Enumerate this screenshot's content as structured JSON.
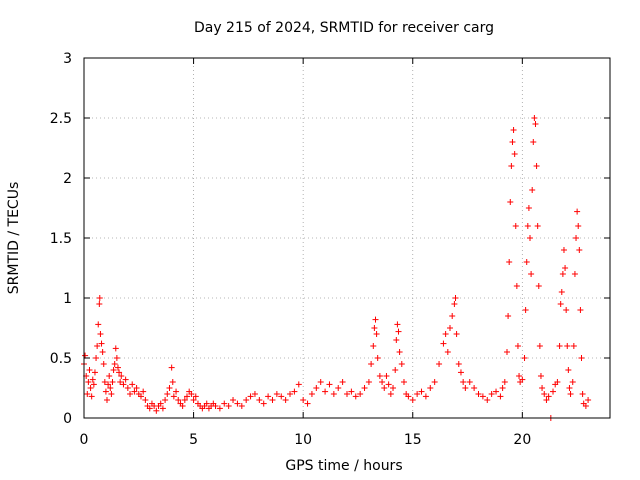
{
  "chart_data": {
    "type": "scatter",
    "title": "Day 215 of 2024, SRMTID for receiver carg",
    "xlabel": "GPS time / hours",
    "ylabel": "SRMTID / TECUs",
    "xlim": [
      0,
      24
    ],
    "ylim": [
      0,
      3
    ],
    "xticks": [
      0,
      5,
      10,
      15,
      20
    ],
    "yticks": [
      0,
      0.5,
      1,
      1.5,
      2,
      2.5,
      3
    ],
    "grid": true,
    "marker": "+",
    "color": "#ff0000",
    "series": [
      {
        "name": "SRMTID",
        "points": [
          [
            0.0,
            0.45
          ],
          [
            0.05,
            0.52
          ],
          [
            0.1,
            0.35
          ],
          [
            0.15,
            0.2
          ],
          [
            0.2,
            0.3
          ],
          [
            0.25,
            0.4
          ],
          [
            0.3,
            0.25
          ],
          [
            0.35,
            0.18
          ],
          [
            0.4,
            0.32
          ],
          [
            0.45,
            0.28
          ],
          [
            0.5,
            0.38
          ],
          [
            0.55,
            0.5
          ],
          [
            0.6,
            0.6
          ],
          [
            0.65,
            0.78
          ],
          [
            0.7,
            0.95
          ],
          [
            0.72,
            1.0
          ],
          [
            0.75,
            0.7
          ],
          [
            0.8,
            0.62
          ],
          [
            0.85,
            0.55
          ],
          [
            0.9,
            0.45
          ],
          [
            0.95,
            0.3
          ],
          [
            1.0,
            0.22
          ],
          [
            1.05,
            0.15
          ],
          [
            1.1,
            0.28
          ],
          [
            1.15,
            0.35
          ],
          [
            1.2,
            0.25
          ],
          [
            1.25,
            0.2
          ],
          [
            1.3,
            0.3
          ],
          [
            1.35,
            0.4
          ],
          [
            1.4,
            0.45
          ],
          [
            1.45,
            0.58
          ],
          [
            1.5,
            0.5
          ],
          [
            1.55,
            0.42
          ],
          [
            1.6,
            0.38
          ],
          [
            1.65,
            0.3
          ],
          [
            1.7,
            0.35
          ],
          [
            1.8,
            0.28
          ],
          [
            1.9,
            0.32
          ],
          [
            2.0,
            0.25
          ],
          [
            2.1,
            0.2
          ],
          [
            2.2,
            0.28
          ],
          [
            2.3,
            0.22
          ],
          [
            2.4,
            0.25
          ],
          [
            2.5,
            0.2
          ],
          [
            2.6,
            0.18
          ],
          [
            2.7,
            0.22
          ],
          [
            2.8,
            0.15
          ],
          [
            2.9,
            0.1
          ],
          [
            3.0,
            0.08
          ],
          [
            3.1,
            0.12
          ],
          [
            3.2,
            0.1
          ],
          [
            3.3,
            0.06
          ],
          [
            3.4,
            0.1
          ],
          [
            3.5,
            0.12
          ],
          [
            3.6,
            0.08
          ],
          [
            3.7,
            0.15
          ],
          [
            3.8,
            0.2
          ],
          [
            3.9,
            0.25
          ],
          [
            4.0,
            0.42
          ],
          [
            4.05,
            0.3
          ],
          [
            4.1,
            0.18
          ],
          [
            4.2,
            0.22
          ],
          [
            4.3,
            0.15
          ],
          [
            4.4,
            0.12
          ],
          [
            4.5,
            0.1
          ],
          [
            4.6,
            0.15
          ],
          [
            4.7,
            0.18
          ],
          [
            4.8,
            0.22
          ],
          [
            4.9,
            0.2
          ],
          [
            5.0,
            0.15
          ],
          [
            5.1,
            0.18
          ],
          [
            5.2,
            0.12
          ],
          [
            5.3,
            0.1
          ],
          [
            5.4,
            0.08
          ],
          [
            5.5,
            0.1
          ],
          [
            5.6,
            0.12
          ],
          [
            5.7,
            0.08
          ],
          [
            5.8,
            0.1
          ],
          [
            5.9,
            0.12
          ],
          [
            6.0,
            0.1
          ],
          [
            6.2,
            0.08
          ],
          [
            6.4,
            0.12
          ],
          [
            6.6,
            0.1
          ],
          [
            6.8,
            0.15
          ],
          [
            7.0,
            0.12
          ],
          [
            7.2,
            0.1
          ],
          [
            7.4,
            0.15
          ],
          [
            7.6,
            0.18
          ],
          [
            7.8,
            0.2
          ],
          [
            8.0,
            0.15
          ],
          [
            8.2,
            0.12
          ],
          [
            8.4,
            0.18
          ],
          [
            8.6,
            0.15
          ],
          [
            8.8,
            0.2
          ],
          [
            9.0,
            0.18
          ],
          [
            9.2,
            0.15
          ],
          [
            9.4,
            0.2
          ],
          [
            9.6,
            0.22
          ],
          [
            9.8,
            0.28
          ],
          [
            10.0,
            0.15
          ],
          [
            10.2,
            0.12
          ],
          [
            10.4,
            0.2
          ],
          [
            10.6,
            0.25
          ],
          [
            10.8,
            0.3
          ],
          [
            11.0,
            0.22
          ],
          [
            11.2,
            0.28
          ],
          [
            11.4,
            0.2
          ],
          [
            11.6,
            0.25
          ],
          [
            11.8,
            0.3
          ],
          [
            12.0,
            0.2
          ],
          [
            12.2,
            0.22
          ],
          [
            12.4,
            0.18
          ],
          [
            12.6,
            0.2
          ],
          [
            12.8,
            0.25
          ],
          [
            13.0,
            0.3
          ],
          [
            13.1,
            0.45
          ],
          [
            13.2,
            0.6
          ],
          [
            13.25,
            0.75
          ],
          [
            13.3,
            0.82
          ],
          [
            13.35,
            0.7
          ],
          [
            13.4,
            0.5
          ],
          [
            13.5,
            0.35
          ],
          [
            13.6,
            0.3
          ],
          [
            13.7,
            0.25
          ],
          [
            13.8,
            0.35
          ],
          [
            13.9,
            0.28
          ],
          [
            14.0,
            0.2
          ],
          [
            14.1,
            0.25
          ],
          [
            14.2,
            0.4
          ],
          [
            14.25,
            0.65
          ],
          [
            14.3,
            0.78
          ],
          [
            14.35,
            0.72
          ],
          [
            14.4,
            0.55
          ],
          [
            14.5,
            0.45
          ],
          [
            14.6,
            0.3
          ],
          [
            14.7,
            0.2
          ],
          [
            14.8,
            0.18
          ],
          [
            15.0,
            0.15
          ],
          [
            15.2,
            0.2
          ],
          [
            15.4,
            0.22
          ],
          [
            15.6,
            0.18
          ],
          [
            15.8,
            0.25
          ],
          [
            16.0,
            0.3
          ],
          [
            16.2,
            0.45
          ],
          [
            16.4,
            0.62
          ],
          [
            16.5,
            0.7
          ],
          [
            16.6,
            0.55
          ],
          [
            16.7,
            0.75
          ],
          [
            16.8,
            0.85
          ],
          [
            16.9,
            0.95
          ],
          [
            16.95,
            1.0
          ],
          [
            17.0,
            0.7
          ],
          [
            17.1,
            0.45
          ],
          [
            17.2,
            0.38
          ],
          [
            17.3,
            0.3
          ],
          [
            17.4,
            0.25
          ],
          [
            17.6,
            0.3
          ],
          [
            17.8,
            0.25
          ],
          [
            18.0,
            0.2
          ],
          [
            18.2,
            0.18
          ],
          [
            18.4,
            0.15
          ],
          [
            18.6,
            0.2
          ],
          [
            18.8,
            0.22
          ],
          [
            19.0,
            0.18
          ],
          [
            19.1,
            0.25
          ],
          [
            19.2,
            0.3
          ],
          [
            19.3,
            0.55
          ],
          [
            19.35,
            0.85
          ],
          [
            19.4,
            1.3
          ],
          [
            19.45,
            1.8
          ],
          [
            19.5,
            2.1
          ],
          [
            19.55,
            2.3
          ],
          [
            19.6,
            2.4
          ],
          [
            19.65,
            2.2
          ],
          [
            19.7,
            1.6
          ],
          [
            19.75,
            1.1
          ],
          [
            19.8,
            0.6
          ],
          [
            19.85,
            0.35
          ],
          [
            19.9,
            0.3
          ],
          [
            20.0,
            0.32
          ],
          [
            20.1,
            0.5
          ],
          [
            20.15,
            0.9
          ],
          [
            20.2,
            1.3
          ],
          [
            20.25,
            1.6
          ],
          [
            20.3,
            1.75
          ],
          [
            20.35,
            1.5
          ],
          [
            20.4,
            1.2
          ],
          [
            20.45,
            1.9
          ],
          [
            20.5,
            2.3
          ],
          [
            20.55,
            2.5
          ],
          [
            20.6,
            2.45
          ],
          [
            20.65,
            2.1
          ],
          [
            20.7,
            1.6
          ],
          [
            20.75,
            1.1
          ],
          [
            20.8,
            0.6
          ],
          [
            20.85,
            0.35
          ],
          [
            20.9,
            0.25
          ],
          [
            21.0,
            0.2
          ],
          [
            21.1,
            0.15
          ],
          [
            21.2,
            0.18
          ],
          [
            21.3,
            0.0
          ],
          [
            21.4,
            0.22
          ],
          [
            21.5,
            0.28
          ],
          [
            21.6,
            0.3
          ],
          [
            21.7,
            0.6
          ],
          [
            21.75,
            0.95
          ],
          [
            21.8,
            1.05
          ],
          [
            21.85,
            1.2
          ],
          [
            21.9,
            1.4
          ],
          [
            21.95,
            1.25
          ],
          [
            22.0,
            0.9
          ],
          [
            22.05,
            0.6
          ],
          [
            22.1,
            0.4
          ],
          [
            22.15,
            0.25
          ],
          [
            22.2,
            0.2
          ],
          [
            22.3,
            0.3
          ],
          [
            22.35,
            0.6
          ],
          [
            22.4,
            1.2
          ],
          [
            22.45,
            1.5
          ],
          [
            22.5,
            1.72
          ],
          [
            22.55,
            1.6
          ],
          [
            22.6,
            1.4
          ],
          [
            22.65,
            0.9
          ],
          [
            22.7,
            0.5
          ],
          [
            22.75,
            0.2
          ],
          [
            22.8,
            0.12
          ],
          [
            22.9,
            0.1
          ],
          [
            23.0,
            0.15
          ]
        ]
      }
    ]
  }
}
